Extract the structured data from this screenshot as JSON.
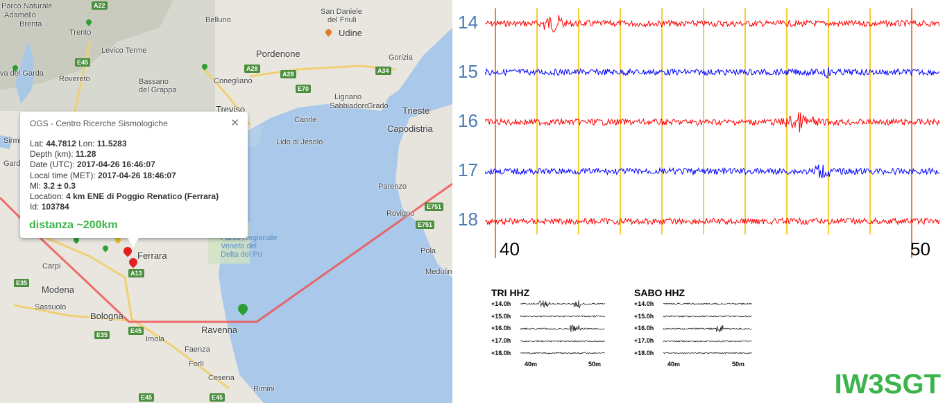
{
  "map": {
    "labels": [
      {
        "text": "Parco Naturale",
        "cls": ""
      },
      {
        "text": "Adamello",
        "cls": ""
      },
      {
        "text": "Brenta",
        "cls": ""
      },
      {
        "text": "Trento",
        "cls": ""
      },
      {
        "text": "Levico Terme",
        "cls": ""
      },
      {
        "text": "Belluno",
        "cls": ""
      },
      {
        "text": "San Daniele",
        "cls": ""
      },
      {
        "text": "del Friuli",
        "cls": ""
      },
      {
        "text": "Udine",
        "cls": "big"
      },
      {
        "text": "Pordenone",
        "cls": "big"
      },
      {
        "text": "Gorizia",
        "cls": ""
      },
      {
        "text": "Rovereto",
        "cls": ""
      },
      {
        "text": "Bassano",
        "cls": ""
      },
      {
        "text": "del Grappa",
        "cls": ""
      },
      {
        "text": "Conegliano",
        "cls": ""
      },
      {
        "text": "Treviso",
        "cls": "big"
      },
      {
        "text": "Lignano",
        "cls": ""
      },
      {
        "text": "Sabbiadoro",
        "cls": ""
      },
      {
        "text": "Grado",
        "cls": ""
      },
      {
        "text": "Trieste",
        "cls": "big"
      },
      {
        "text": "Capodistria",
        "cls": "big"
      },
      {
        "text": "Caorle",
        "cls": ""
      },
      {
        "text": "Lido di Jesolo",
        "cls": ""
      },
      {
        "text": "Parenzo",
        "cls": ""
      },
      {
        "text": "Rovigno",
        "cls": ""
      },
      {
        "text": "Pola",
        "cls": ""
      },
      {
        "text": "Medulin",
        "cls": ""
      },
      {
        "text": "Ferrara",
        "cls": "big"
      },
      {
        "text": "Carpi",
        "cls": ""
      },
      {
        "text": "Modena",
        "cls": "big"
      },
      {
        "text": "Sassuolo",
        "cls": ""
      },
      {
        "text": "Bologna",
        "cls": "big"
      },
      {
        "text": "Imola",
        "cls": ""
      },
      {
        "text": "Ravenna",
        "cls": "big"
      },
      {
        "text": "Faenza",
        "cls": ""
      },
      {
        "text": "Forlì",
        "cls": ""
      },
      {
        "text": "Cesena",
        "cls": ""
      },
      {
        "text": "Rimini",
        "cls": ""
      },
      {
        "text": "Parco Regionale",
        "cls": "water"
      },
      {
        "text": "Veneto del",
        "cls": "water"
      },
      {
        "text": "Delta del Po",
        "cls": "water"
      },
      {
        "text": "va del Garda",
        "cls": ""
      },
      {
        "text": "Sirmi",
        "cls": ""
      },
      {
        "text": "Gard",
        "cls": ""
      }
    ],
    "roads": [
      "A22",
      "E45",
      "A28",
      "A28",
      "E70",
      "A34",
      "A13",
      "E35",
      "E45",
      "E35",
      "E45",
      "E751",
      "E751",
      "E45"
    ],
    "popup": {
      "title": "OGS - Centro Ricerche Sismologiche",
      "close": "✕",
      "lat_label": "Lat:",
      "lat": "44.7812",
      "lon_label": "Lon:",
      "lon": "11.5283",
      "depth_label": "Depth (km):",
      "depth": "11.28",
      "date_label": "Date (UTC):",
      "date": "2017-04-26 16:46:07",
      "local_label": "Local time (MET):",
      "local": "2017-04-26 18:46:07",
      "ml_label": "Ml:",
      "ml": "3.2 ± 0.3",
      "loc_label": "Location:",
      "loc": "4 km ENE di Poggio Renatico (Ferrara)",
      "id_label": "Id:",
      "id": "103784",
      "distance": "distanza ~200km"
    }
  },
  "seismogram": {
    "hours": [
      "14",
      "15",
      "16",
      "17",
      "18"
    ],
    "tick_start": "40",
    "tick_end": "50",
    "trace_colors": [
      "#ff0000",
      "#0000ff",
      "#ff0000",
      "#0000ff",
      "#ff0000"
    ],
    "marker_colors": {
      "major": "#e06010",
      "minor": "#f5c000"
    }
  },
  "mini_panels": [
    {
      "title": "TRI HHZ",
      "rows": [
        "+14.0h",
        "+15.0h",
        "+16.0h",
        "+17.0h",
        "+18.0h"
      ],
      "x_start": "40m",
      "x_end": "50m"
    },
    {
      "title": "SABO HHZ",
      "rows": [
        "+14.0h",
        "+15.0h",
        "+16.0h",
        "+17.0h",
        "+18.0h"
      ],
      "x_start": "40m",
      "x_end": "50m"
    }
  ],
  "callsign": "IW3SGT"
}
